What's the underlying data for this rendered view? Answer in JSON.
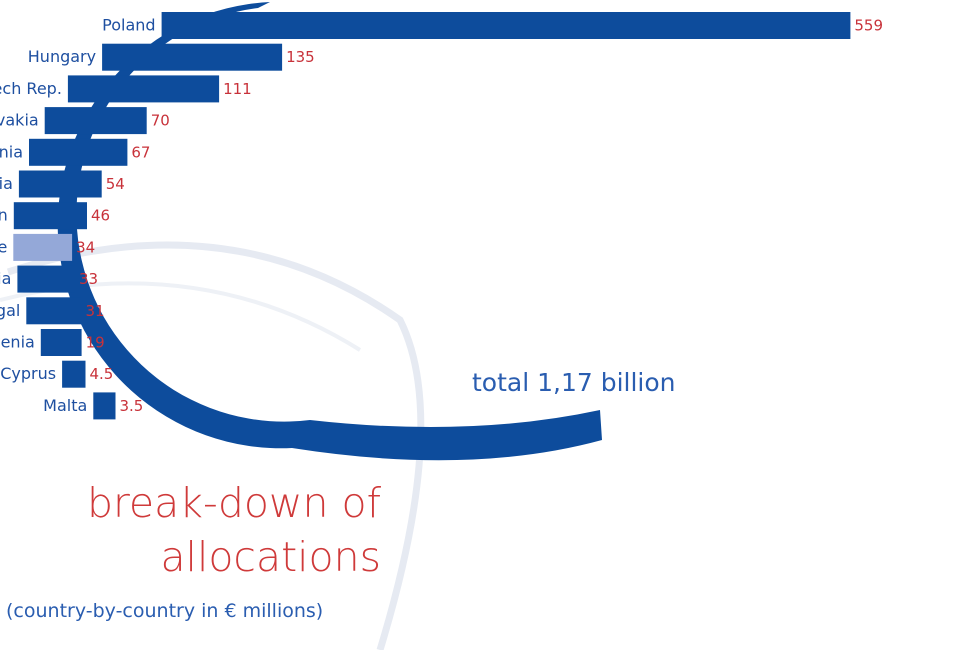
{
  "title_lines": [
    "break-down of",
    "allocations"
  ],
  "subtitle": "(country-by-country in € millions)",
  "total_label": "total 1,17 billion",
  "colors": {
    "bar": "#0d4c9c",
    "highlight": "#94a8d8",
    "value_text": "#c8323a",
    "label_text": "#1e4fa0",
    "arc": "#0d4c9c"
  },
  "chart_data": {
    "type": "bar",
    "orientation": "horizontal",
    "title": "break-down of allocations",
    "subtitle": "(country-by-country in € millions)",
    "annotations": [
      "total 1,17 billion"
    ],
    "categories": [
      "Poland",
      "Hungary",
      "Czech Rep.",
      "Slovakia",
      "Lithuania",
      "Latvia",
      "Spain",
      "Greece",
      "Estonia",
      "Portugal",
      "Slovenia",
      "Cyprus",
      "Malta"
    ],
    "values": [
      559,
      135,
      111,
      70,
      67,
      54,
      46,
      34,
      33,
      31,
      19,
      4.5,
      3.5
    ],
    "value_labels": [
      "559",
      "135",
      "111",
      "70",
      "67",
      "54",
      "46",
      "34",
      "33",
      "31",
      "19",
      "4.5",
      "3.5"
    ],
    "highlighted": [
      "Greece"
    ],
    "unit": "€ millions",
    "grid": false
  }
}
